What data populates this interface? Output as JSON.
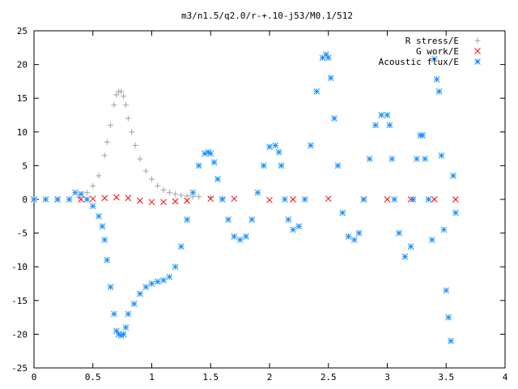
{
  "chart_data": {
    "type": "scatter",
    "title": "m3/n1.5/q2.0/r-+.10-j53/M0.1/512",
    "xlabel": "",
    "ylabel": "",
    "xlim": [
      0,
      4
    ],
    "ylim": [
      -25,
      25
    ],
    "x_ticks": [
      0,
      0.5,
      1,
      1.5,
      2,
      2.5,
      3,
      3.5,
      4
    ],
    "x_tick_labels": [
      "0",
      "0.5",
      "1",
      "1.5",
      "2",
      "2.5",
      "3",
      "3.5",
      "4"
    ],
    "y_ticks": [
      -25,
      -20,
      -15,
      -10,
      -5,
      0,
      5,
      10,
      15,
      20,
      25
    ],
    "y_tick_labels": [
      "-25",
      "-20",
      "-15",
      "-10",
      "-5",
      "0",
      "5",
      "10",
      "15",
      "20",
      "25"
    ],
    "grid": false,
    "legend_position": "top-right",
    "series": [
      {
        "name": "R stress/E",
        "marker": "plus",
        "color": "#a0a0a0",
        "x": [
          0.0,
          0.1,
          0.2,
          0.3,
          0.38,
          0.45,
          0.5,
          0.55,
          0.6,
          0.62,
          0.65,
          0.68,
          0.7,
          0.72,
          0.74,
          0.76,
          0.78,
          0.8,
          0.83,
          0.86,
          0.9,
          0.95,
          1.0,
          1.05,
          1.1,
          1.15,
          1.2,
          1.25,
          1.3,
          1.35,
          1.4,
          1.5,
          1.6
        ],
        "y": [
          0.0,
          0.0,
          0.0,
          0.0,
          0.3,
          1.0,
          2.0,
          3.5,
          6.5,
          8.5,
          11.0,
          14.0,
          15.5,
          16.0,
          16.0,
          15.3,
          14.0,
          12.0,
          10.0,
          8.0,
          6.0,
          4.2,
          3.0,
          2.0,
          1.4,
          1.0,
          0.8,
          0.6,
          0.5,
          0.4,
          0.4,
          0.3,
          0.2
        ]
      },
      {
        "name": "G work/E",
        "marker": "cross",
        "color": "#ff0000",
        "x": [
          0.0,
          0.2,
          0.4,
          0.5,
          0.6,
          0.7,
          0.8,
          0.9,
          1.0,
          1.1,
          1.2,
          1.3,
          1.5,
          1.7,
          2.0,
          2.2,
          2.5,
          2.8,
          3.0,
          3.2,
          3.4,
          3.58
        ],
        "y": [
          0.0,
          0.0,
          0.0,
          0.1,
          0.2,
          0.3,
          0.2,
          -0.2,
          -0.4,
          -0.4,
          -0.3,
          -0.2,
          0.1,
          0.1,
          -0.1,
          0.0,
          0.1,
          0.0,
          0.0,
          0.0,
          0.0,
          0.0
        ]
      },
      {
        "name": "Acoustic flux/E",
        "marker": "star",
        "color": "#1a90ff",
        "x": [
          0.0,
          0.1,
          0.2,
          0.3,
          0.35,
          0.4,
          0.45,
          0.5,
          0.55,
          0.58,
          0.6,
          0.62,
          0.65,
          0.68,
          0.7,
          0.72,
          0.74,
          0.76,
          0.78,
          0.8,
          0.85,
          0.9,
          0.95,
          1.0,
          1.05,
          1.1,
          1.15,
          1.2,
          1.25,
          1.3,
          1.35,
          1.4,
          1.45,
          1.48,
          1.5,
          1.53,
          1.56,
          1.6,
          1.65,
          1.7,
          1.75,
          1.8,
          1.85,
          1.9,
          1.95,
          2.0,
          2.05,
          2.08,
          2.1,
          2.13,
          2.16,
          2.2,
          2.25,
          2.3,
          2.35,
          2.4,
          2.45,
          2.48,
          2.5,
          2.52,
          2.55,
          2.58,
          2.62,
          2.67,
          2.72,
          2.76,
          2.8,
          2.85,
          2.9,
          2.95,
          3.0,
          3.02,
          3.04,
          3.06,
          3.1,
          3.15,
          3.2,
          3.22,
          3.25,
          3.28,
          3.3,
          3.32,
          3.35,
          3.38,
          3.4,
          3.42,
          3.44,
          3.46,
          3.48,
          3.5,
          3.52,
          3.54,
          3.56,
          3.58
        ],
        "y": [
          0.0,
          0.0,
          0.0,
          0.0,
          1.0,
          0.8,
          0.0,
          -1.0,
          -2.5,
          -4.0,
          -6.0,
          -9.0,
          -13.0,
          -17.0,
          -19.5,
          -20.0,
          -20.2,
          -20.0,
          -19.0,
          -17.0,
          -15.5,
          -14.0,
          -13.0,
          -12.5,
          -12.2,
          -12.0,
          -11.5,
          -10.0,
          -7.0,
          -3.0,
          1.0,
          5.0,
          6.8,
          7.0,
          6.8,
          5.5,
          3.0,
          0.0,
          -3.0,
          -5.5,
          -6.0,
          -5.5,
          -3.0,
          1.0,
          5.0,
          7.8,
          8.0,
          7.0,
          5.0,
          0.0,
          -3.0,
          -4.5,
          -4.0,
          0.0,
          8.0,
          16.0,
          21.0,
          21.5,
          21.0,
          18.0,
          12.0,
          5.0,
          -2.0,
          -5.5,
          -6.0,
          -5.0,
          0.0,
          6.0,
          11.0,
          12.5,
          12.5,
          11.0,
          6.0,
          0.0,
          -5.0,
          -8.5,
          -7.0,
          0.0,
          6.0,
          9.5,
          9.5,
          6.0,
          0.0,
          -6.0,
          20.8,
          17.8,
          16.0,
          6.5,
          -4.5,
          -13.5,
          -17.5,
          -21.0,
          3.5,
          -2.0
        ]
      }
    ]
  }
}
